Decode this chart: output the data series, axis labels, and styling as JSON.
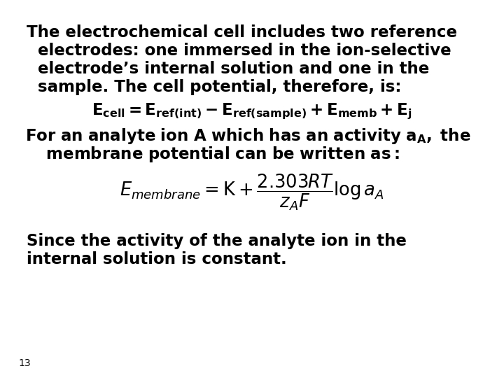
{
  "bg_color": "#ffffff",
  "text_color": "#000000",
  "slide_number": "13",
  "fontsize_main": 16.5,
  "fontsize_formula": 15.5,
  "fontsize_slide_num": 10,
  "line1": "The electrochemical cell includes two reference",
  "line2": "  electrodes: one immersed in the ion-selective",
  "line3": "  electrode’s internal solution and one in the",
  "line4": "  sample. The cell potential, therefore, is:",
  "eq1": "$E_{cell} = E_{ref(int)} - E_{ref(sample)} + E_{memb} + E_j$",
  "line5": "For an analyte ion A which has an activity a",
  "line5b": ", the",
  "line5_sub": "A",
  "line6": "  membrane potential can be written as:",
  "formula": "$E_{membrane} = \\mathrm{K} + \\dfrac{2.303RT}{z_A F} \\log a_A$",
  "line7": "Since the activity of the analyte ion in the",
  "line8": "internal solution is constant."
}
